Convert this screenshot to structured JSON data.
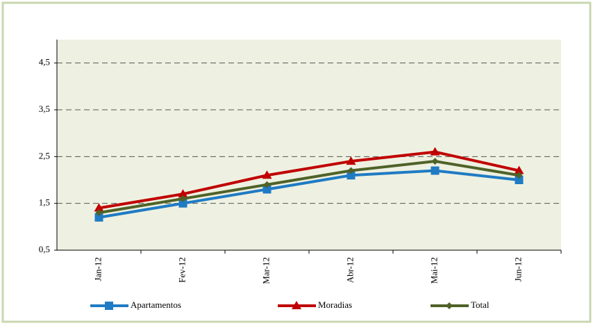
{
  "chart_data": {
    "type": "line",
    "categories": [
      "Jan-12",
      "Fev-12",
      "Mar-12",
      "Abr-12",
      "Mai-12",
      "Jun-12"
    ],
    "series": [
      {
        "name": "Apartamentos",
        "color": "#1f7bc4",
        "marker": "square",
        "values": [
          1.2,
          1.5,
          1.8,
          2.1,
          2.2,
          2.0
        ]
      },
      {
        "name": "Moradias",
        "color": "#c00000",
        "marker": "triangle",
        "values": [
          1.4,
          1.7,
          2.1,
          2.4,
          2.6,
          2.2
        ]
      },
      {
        "name": "Total",
        "color": "#4f6228",
        "marker": "diamond",
        "values": [
          1.3,
          1.6,
          1.9,
          2.2,
          2.4,
          2.1
        ]
      }
    ],
    "ylim": [
      0.5,
      5.0
    ],
    "yticks": [
      {
        "value": 0.5,
        "label": "0,5"
      },
      {
        "value": 1.5,
        "label": "1,5"
      },
      {
        "value": 2.5,
        "label": "2,5"
      },
      {
        "value": 3.5,
        "label": "3,5"
      },
      {
        "value": 4.5,
        "label": "4,5"
      }
    ],
    "grid": true,
    "legend": "bottom"
  }
}
